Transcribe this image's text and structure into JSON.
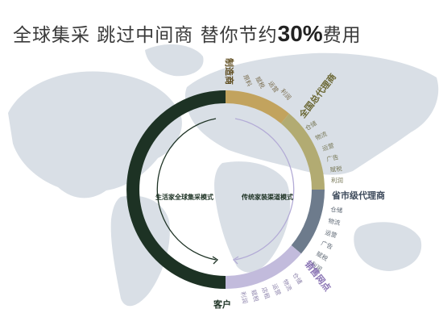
{
  "headline": {
    "part1": "全球集采  跳过中间商  替你节约",
    "percent": "30%",
    "part2": "费用"
  },
  "left_mode_label": "生活家全球集采模式",
  "right_mode_label": "传统家装渠道模式",
  "customer_label": "客户",
  "manufacturer_label": "制造商",
  "manufacturer_costs": [
    "原料",
    "赋税",
    "运营",
    "利润"
  ],
  "national_agent_label": "全国总代理商",
  "national_agent_costs": [
    "仓储",
    "物流",
    "运营",
    "广告",
    "赋税",
    "利润"
  ],
  "city_agent_label": "省市级代理商",
  "city_agent_costs": [
    "仓储",
    "物流",
    "运营",
    "广告",
    "赋税",
    "利润"
  ],
  "retail_label": "销售网点",
  "retail_costs": [
    "仓储",
    "物流",
    "运营",
    "店租",
    "赋税",
    "利润"
  ],
  "colors": {
    "dark_green": "#1d3224",
    "gold": "#c2a35e",
    "olive": "#b2ab72",
    "slate": "#6d7b8c",
    "lavender": "#c2bbdc",
    "map": "#d9dfe6"
  }
}
